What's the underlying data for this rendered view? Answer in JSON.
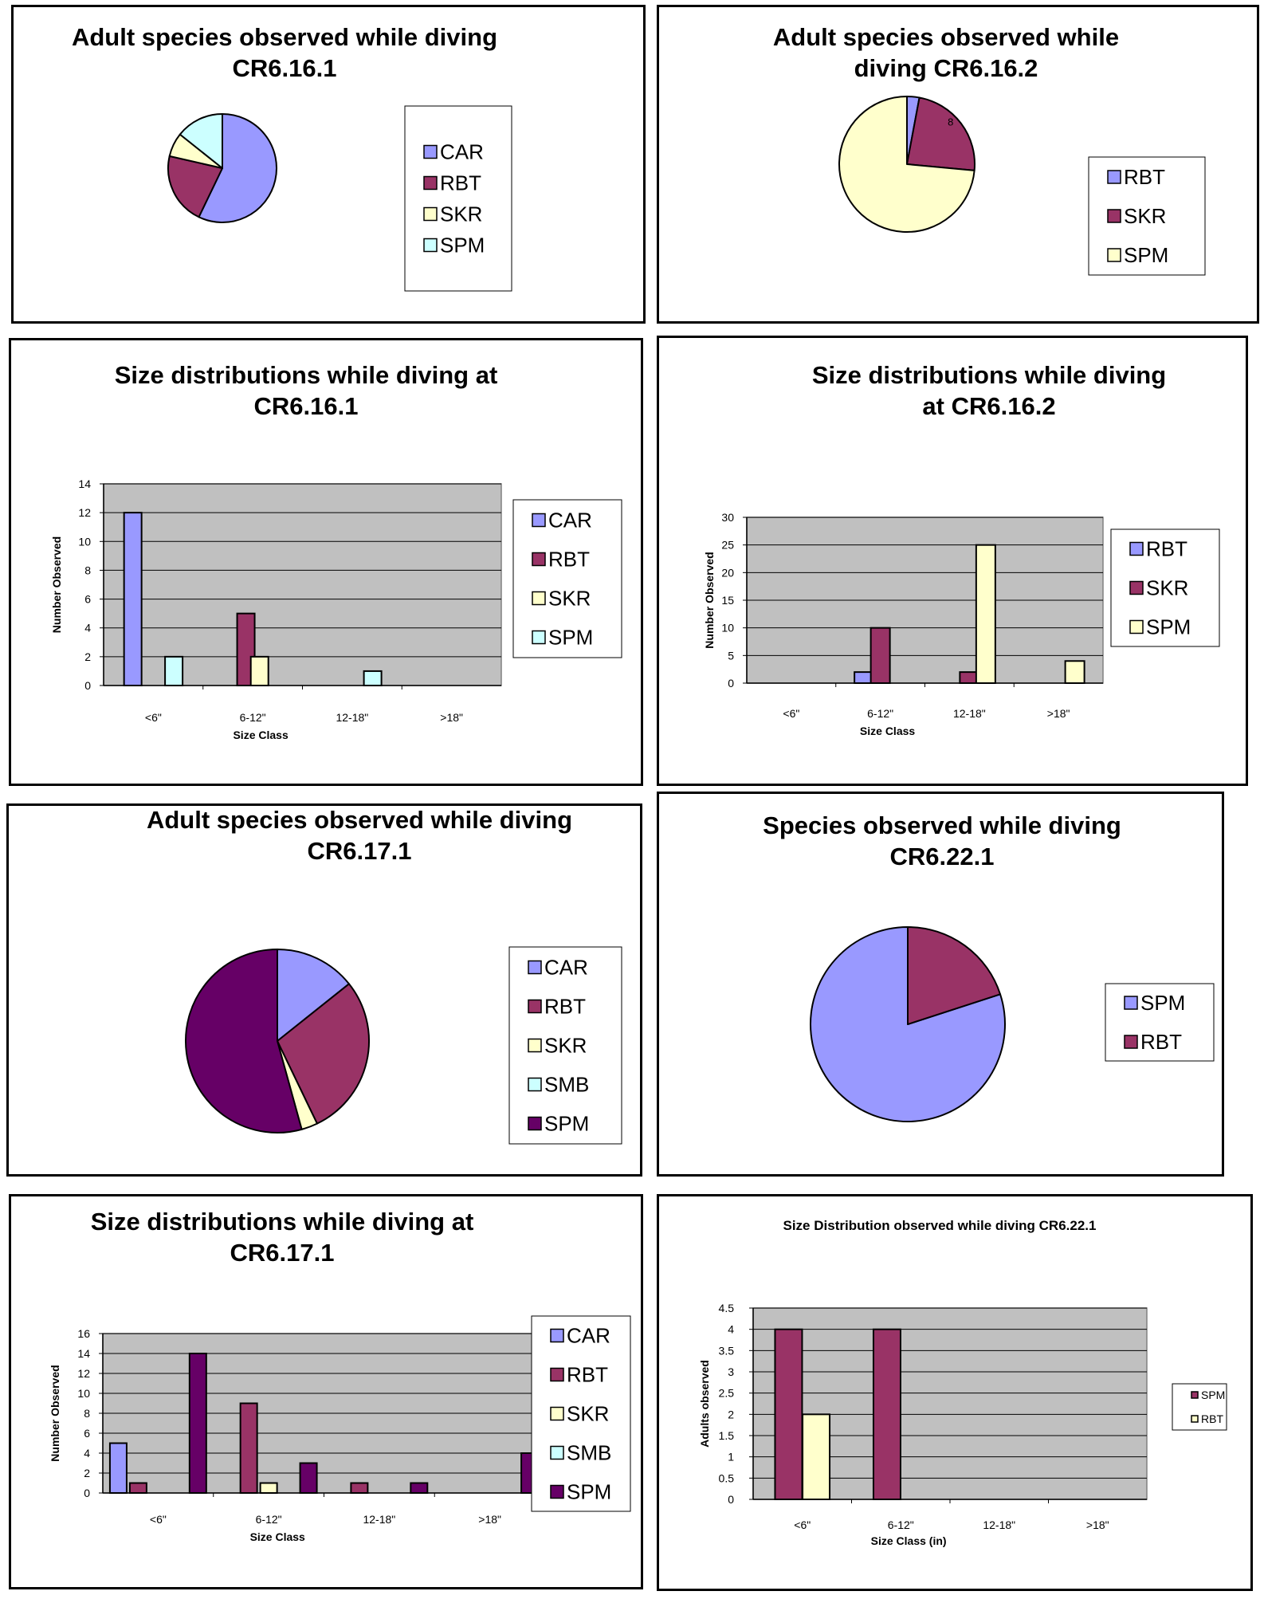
{
  "colors": {
    "CAR": "#9999ff",
    "RBT": "#993366",
    "SKR": "#ffffcc",
    "SPM_light": "#ccffff",
    "SMB": "#ccffff",
    "SPM_dark": "#660066",
    "SPM_periwinkle": "#9999ff",
    "plot_bg": "#c0c0c0"
  },
  "chart_data": [
    {
      "id": "p1",
      "type": "pie",
      "title": [
        "Adult species observed while diving",
        "CR6.16.1"
      ],
      "labels": [
        "CAR",
        "RBT",
        "SKR",
        "SPM"
      ],
      "values": [
        8,
        3,
        1,
        2
      ],
      "colors": [
        "#9999ff",
        "#993366",
        "#ffffcc",
        "#ccffff"
      ],
      "data_labels": [],
      "legend": "right"
    },
    {
      "id": "p2",
      "type": "pie",
      "title": [
        "Adult species observed while",
        "diving CR6.16.2"
      ],
      "labels": [
        "RBT",
        "SKR",
        "SPM"
      ],
      "values": [
        1,
        8,
        25
      ],
      "colors": [
        "#9999ff",
        "#993366",
        "#ffffcc"
      ],
      "data_labels": [
        "",
        "8",
        ""
      ],
      "legend": "right"
    },
    {
      "id": "b1",
      "type": "bar",
      "title": [
        "Size distributions while diving at",
        "CR6.16.1"
      ],
      "categories": [
        "<6\"",
        "6-12\"",
        "12-18\"",
        ">18\""
      ],
      "series": [
        {
          "name": "CAR",
          "color": "#9999ff",
          "values": [
            12,
            0,
            0,
            0
          ]
        },
        {
          "name": "RBT",
          "color": "#993366",
          "values": [
            0,
            5,
            0,
            0
          ]
        },
        {
          "name": "SKR",
          "color": "#ffffcc",
          "values": [
            0,
            2,
            0,
            0
          ]
        },
        {
          "name": "SPM",
          "color": "#ccffff",
          "values": [
            2,
            0,
            1,
            0
          ]
        }
      ],
      "yticks": [
        "0",
        "2",
        "4",
        "6",
        "8",
        "10",
        "12",
        "14"
      ],
      "ylim": [
        0,
        14
      ],
      "xlabel": "Size Class",
      "ylabel": "Number Observed",
      "legend": "right"
    },
    {
      "id": "b2",
      "type": "bar",
      "title": [
        "Size distributions while diving",
        "at CR6.16.2"
      ],
      "categories": [
        "<6\"",
        "6-12\"",
        "12-18\"",
        ">18\""
      ],
      "series": [
        {
          "name": "RBT",
          "color": "#9999ff",
          "values": [
            0,
            2,
            0,
            0
          ]
        },
        {
          "name": "SKR",
          "color": "#993366",
          "values": [
            0,
            10,
            2,
            0
          ]
        },
        {
          "name": "SPM",
          "color": "#ffffcc",
          "values": [
            0,
            0,
            25,
            4
          ]
        }
      ],
      "yticks": [
        "0",
        "5",
        "10",
        "15",
        "20",
        "25",
        "30"
      ],
      "ylim": [
        0,
        30
      ],
      "xlabel": "Size Class",
      "ylabel": "Number Observed",
      "legend": "right"
    },
    {
      "id": "p3",
      "type": "pie",
      "title": [
        "Adult species observed while diving",
        "CR6.17.1"
      ],
      "labels": [
        "CAR",
        "RBT",
        "SKR",
        "SMB",
        "SPM"
      ],
      "values": [
        5,
        10,
        1,
        0,
        19
      ],
      "colors": [
        "#9999ff",
        "#993366",
        "#ffffcc",
        "#ccffff",
        "#660066"
      ],
      "data_labels": [],
      "legend": "right"
    },
    {
      "id": "p4",
      "type": "pie",
      "title": [
        "Species observed while diving",
        "CR6.22.1"
      ],
      "labels": [
        "SPM",
        "RBT"
      ],
      "values": [
        8,
        2
      ],
      "colors": [
        "#9999ff",
        "#993366"
      ],
      "data_labels": [],
      "legend": "right"
    },
    {
      "id": "b3",
      "type": "bar",
      "title": [
        "Size distributions while diving at",
        "CR6.17.1"
      ],
      "categories": [
        "<6\"",
        "6-12\"",
        "12-18\"",
        ">18\""
      ],
      "series": [
        {
          "name": "CAR",
          "color": "#9999ff",
          "values": [
            5,
            0,
            0,
            0
          ]
        },
        {
          "name": "RBT",
          "color": "#993366",
          "values": [
            1,
            9,
            1,
            0
          ]
        },
        {
          "name": "SKR",
          "color": "#ffffcc",
          "values": [
            0,
            1,
            0,
            0
          ]
        },
        {
          "name": "SMB",
          "color": "#ccffff",
          "values": [
            0,
            0,
            0,
            0
          ]
        },
        {
          "name": "SPM",
          "color": "#660066",
          "values": [
            14,
            3,
            1,
            4
          ]
        }
      ],
      "yticks": [
        "0",
        "2",
        "4",
        "6",
        "8",
        "10",
        "12",
        "14",
        "16"
      ],
      "ylim": [
        0,
        16
      ],
      "xlabel": "Size Class",
      "ylabel": "Number Observed",
      "legend": "right"
    },
    {
      "id": "b4",
      "type": "bar",
      "title": [
        "Size Distribution observed while diving CR6.22.1"
      ],
      "categories": [
        "<6\"",
        "6-12\"",
        "12-18\"",
        ">18\""
      ],
      "series": [
        {
          "name": "SPM",
          "color": "#993366",
          "values": [
            4,
            4,
            0,
            0
          ]
        },
        {
          "name": "RBT",
          "color": "#ffffcc",
          "values": [
            2,
            0,
            0,
            0
          ]
        }
      ],
      "yticks": [
        "0",
        "0.5",
        "1",
        "1.5",
        "2",
        "2.5",
        "3",
        "3.5",
        "4",
        "4.5"
      ],
      "ylim": [
        0,
        4.5
      ],
      "xlabel": "Size Class (in)",
      "ylabel": "Adults observed",
      "legend": "right"
    }
  ]
}
